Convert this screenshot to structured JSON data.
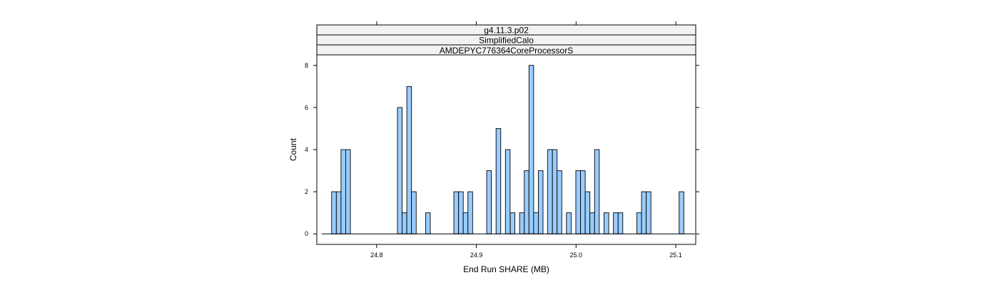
{
  "chart_data": {
    "type": "bar",
    "strips": [
      "g4.11.3.p02",
      "SimplifiedCalo",
      "AMDEPYC776364CoreProcessorS"
    ],
    "xlabel": "End Run SHARE (MB)",
    "ylabel": "Count",
    "xlim": [
      24.74,
      25.12
    ],
    "ylim": [
      -0.5,
      8.5
    ],
    "xticks": [
      "24.8",
      "24.9",
      "25.0",
      "25.1"
    ],
    "yticks": [
      "0",
      "2",
      "4",
      "6",
      "8"
    ],
    "bin_width": 0.0047,
    "bar_color": "#99ccff",
    "bins": [
      {
        "x": 24.7572,
        "count": 2
      },
      {
        "x": 24.7619,
        "count": 2
      },
      {
        "x": 24.7666,
        "count": 4
      },
      {
        "x": 24.7713,
        "count": 4
      },
      {
        "x": 24.8232,
        "count": 6
      },
      {
        "x": 24.8279,
        "count": 1
      },
      {
        "x": 24.8326,
        "count": 7
      },
      {
        "x": 24.8373,
        "count": 2
      },
      {
        "x": 24.8514,
        "count": 1
      },
      {
        "x": 24.8798,
        "count": 2
      },
      {
        "x": 24.8845,
        "count": 2
      },
      {
        "x": 24.8892,
        "count": 1
      },
      {
        "x": 24.8939,
        "count": 2
      },
      {
        "x": 24.9127,
        "count": 3
      },
      {
        "x": 24.9221,
        "count": 5
      },
      {
        "x": 24.9315,
        "count": 4
      },
      {
        "x": 24.9363,
        "count": 1
      },
      {
        "x": 24.9457,
        "count": 1
      },
      {
        "x": 24.9504,
        "count": 3
      },
      {
        "x": 24.9551,
        "count": 8
      },
      {
        "x": 24.9598,
        "count": 1
      },
      {
        "x": 24.9645,
        "count": 3
      },
      {
        "x": 24.9739,
        "count": 4
      },
      {
        "x": 24.9786,
        "count": 4
      },
      {
        "x": 24.9833,
        "count": 3
      },
      {
        "x": 24.9927,
        "count": 1
      },
      {
        "x": 25.0021,
        "count": 3
      },
      {
        "x": 25.0068,
        "count": 3
      },
      {
        "x": 25.0115,
        "count": 2
      },
      {
        "x": 25.0162,
        "count": 1
      },
      {
        "x": 25.0209,
        "count": 4
      },
      {
        "x": 25.0304,
        "count": 1
      },
      {
        "x": 25.0398,
        "count": 1
      },
      {
        "x": 25.0445,
        "count": 1
      },
      {
        "x": 25.0633,
        "count": 1
      },
      {
        "x": 25.068,
        "count": 2
      },
      {
        "x": 25.0727,
        "count": 2
      },
      {
        "x": 25.1057,
        "count": 2
      }
    ],
    "baseline_range": [
      24.7448,
      25.1192
    ]
  }
}
